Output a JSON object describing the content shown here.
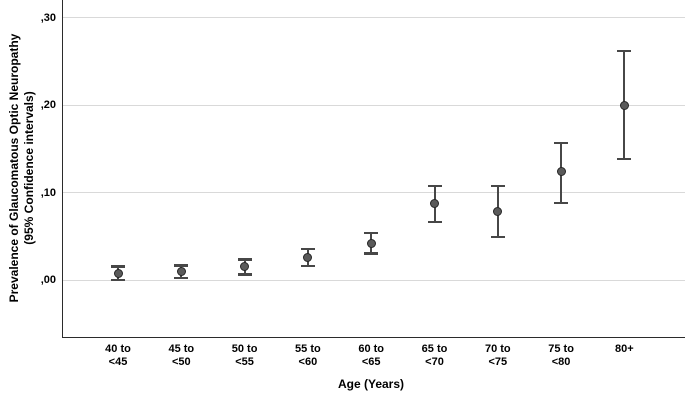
{
  "chart_data": {
    "type": "scatter",
    "subtype": "point-estimate-with-95ci-error-bars",
    "title": "",
    "xlabel": "Age (Years)",
    "ylabel_lines": [
      "Prevalence of Glaucomatous Optic Neuropathy",
      "(95% Confidence intervals)"
    ],
    "categories": [
      "40 to <45",
      "45 to <50",
      "50 to <55",
      "55 to <60",
      "60 to <65",
      "65 to <70",
      "70 to <75",
      "75 to <80",
      "80+"
    ],
    "points": [
      {
        "age_group": "40 to <45",
        "label_lines": [
          "40 to",
          "<45"
        ],
        "prevalence": 0.007,
        "ci_lower": 0.0,
        "ci_upper": 0.016
      },
      {
        "age_group": "45 to <50",
        "label_lines": [
          "45 to",
          "<50"
        ],
        "prevalence": 0.01,
        "ci_lower": 0.002,
        "ci_upper": 0.017
      },
      {
        "age_group": "50 to <55",
        "label_lines": [
          "50 to",
          "<55"
        ],
        "prevalence": 0.015,
        "ci_lower": 0.006,
        "ci_upper": 0.024
      },
      {
        "age_group": "55 to <60",
        "label_lines": [
          "55 to",
          "<60"
        ],
        "prevalence": 0.026,
        "ci_lower": 0.016,
        "ci_upper": 0.036
      },
      {
        "age_group": "60 to <65",
        "label_lines": [
          "60 to",
          "<65"
        ],
        "prevalence": 0.042,
        "ci_lower": 0.03,
        "ci_upper": 0.054
      },
      {
        "age_group": "65 to <70",
        "label_lines": [
          "65 to",
          "<70"
        ],
        "prevalence": 0.088,
        "ci_lower": 0.066,
        "ci_upper": 0.108
      },
      {
        "age_group": "70 to <75",
        "label_lines": [
          "70 to",
          "<75"
        ],
        "prevalence": 0.078,
        "ci_lower": 0.049,
        "ci_upper": 0.108
      },
      {
        "age_group": "75 to <80",
        "label_lines": [
          "75 to",
          "<80"
        ],
        "prevalence": 0.124,
        "ci_lower": 0.088,
        "ci_upper": 0.157
      },
      {
        "age_group": "80+",
        "label_lines": [
          "80+"
        ],
        "prevalence": 0.2,
        "ci_lower": 0.138,
        "ci_upper": 0.262
      }
    ],
    "yticks": [
      {
        "value": 0.0,
        "label": ",00"
      },
      {
        "value": 0.1,
        "label": ",10"
      },
      {
        "value": 0.2,
        "label": ",20"
      },
      {
        "value": 0.3,
        "label": ",30"
      }
    ],
    "ylim": [
      -0.065,
      0.32
    ],
    "grid": "horizontal",
    "legend": "none",
    "colors": {
      "marker_fill": "#5a5a5a",
      "marker_outline": "#262626",
      "error_bar": "#474747",
      "gridline": "#d9d9d9",
      "axis": "#2b2b2b",
      "background": "#ffffff",
      "text": "#000000"
    }
  }
}
